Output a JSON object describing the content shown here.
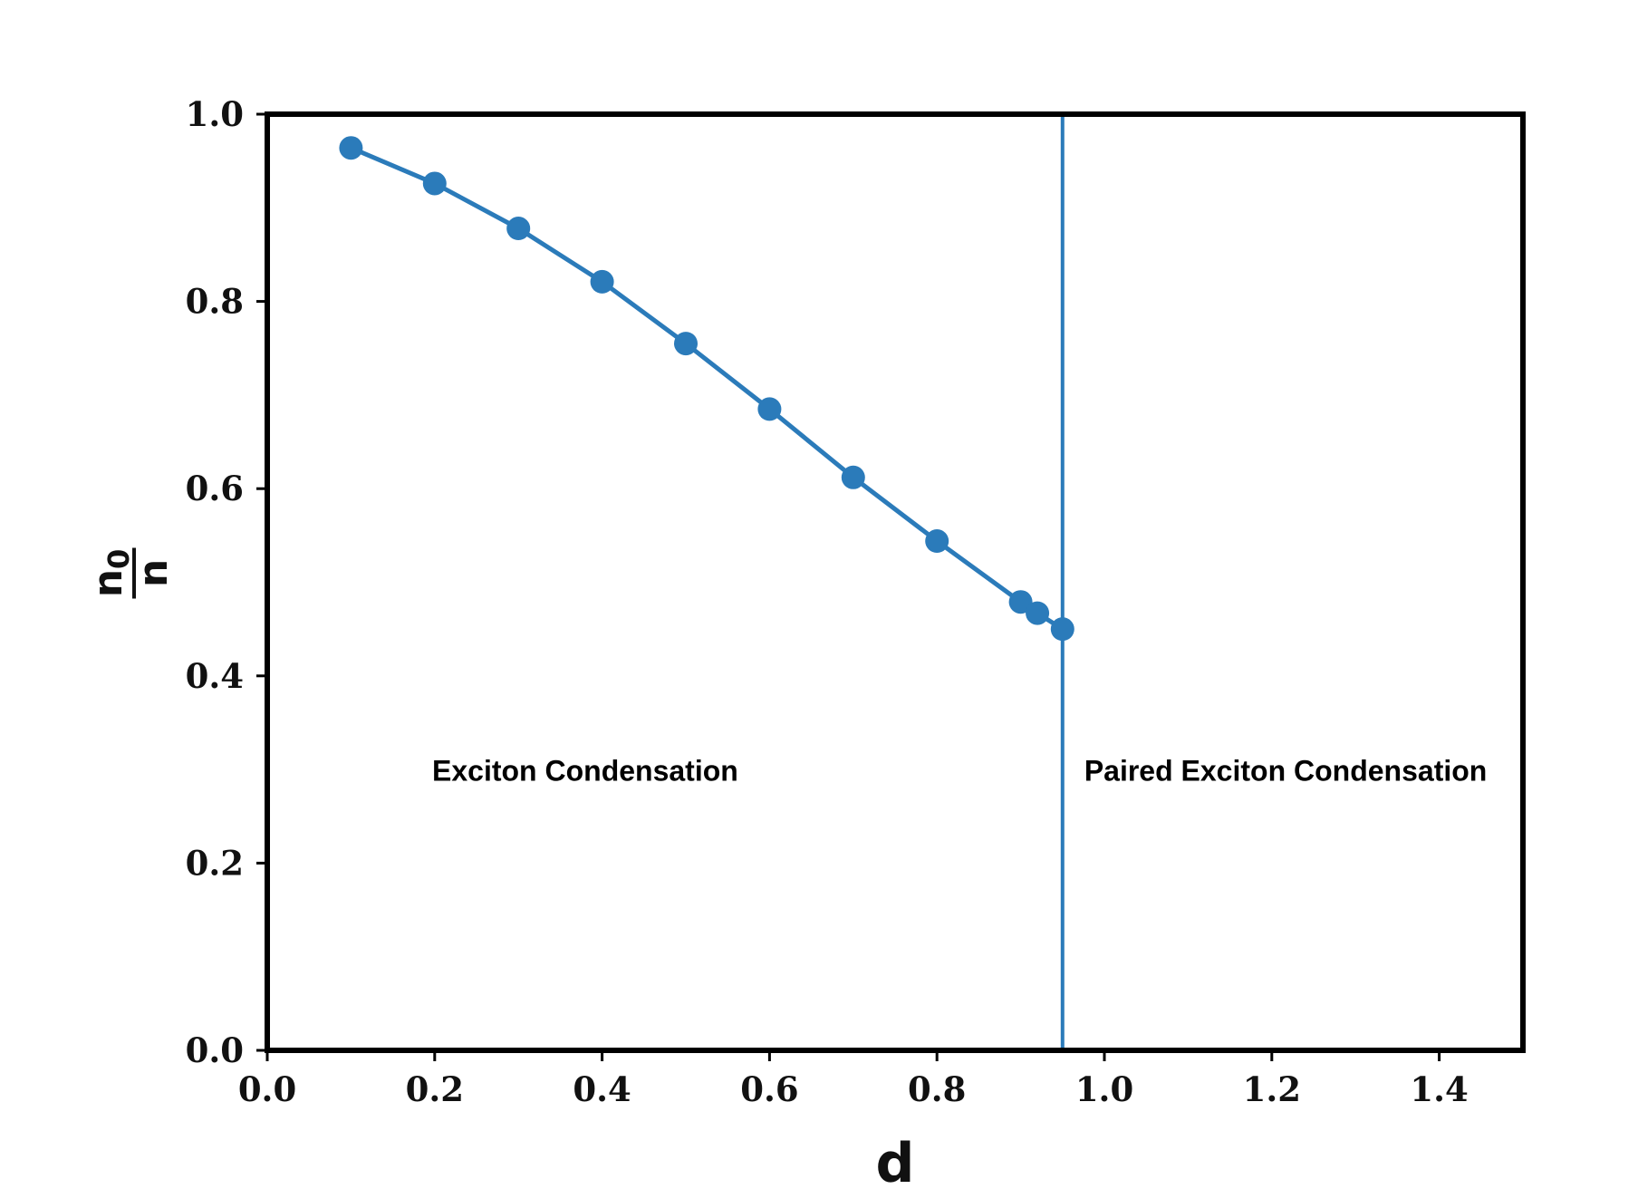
{
  "chart_data": {
    "type": "line",
    "title": "",
    "xlabel": "d",
    "ylabel": {
      "numerator": "n",
      "numerator_subscript": "0",
      "denominator": "n"
    },
    "xlim": [
      0.0,
      1.5
    ],
    "ylim": [
      0.0,
      1.0
    ],
    "xticks": [
      "0.0",
      "0.2",
      "0.4",
      "0.6",
      "0.8",
      "1.0",
      "1.2",
      "1.4"
    ],
    "yticks": [
      "0.0",
      "0.2",
      "0.4",
      "0.6",
      "0.8",
      "1.0"
    ],
    "grid": false,
    "series": [
      {
        "x": [
          0.1,
          0.2,
          0.3,
          0.4,
          0.5,
          0.6,
          0.7,
          0.8,
          0.9,
          0.92,
          0.95
        ],
        "y": [
          0.964,
          0.926,
          0.878,
          0.821,
          0.755,
          0.685,
          0.612,
          0.544,
          0.479,
          0.467,
          0.45
        ],
        "color": "#2b7bba",
        "marker": "circle"
      }
    ],
    "vline": {
      "x": 0.95,
      "color": "#2b7bba"
    },
    "annotations": [
      {
        "text": "Exciton Condensation",
        "x": 0.197,
        "y": 0.288
      },
      {
        "text": "Paired Exciton Condensation",
        "x": 0.976,
        "y": 0.288
      }
    ]
  }
}
